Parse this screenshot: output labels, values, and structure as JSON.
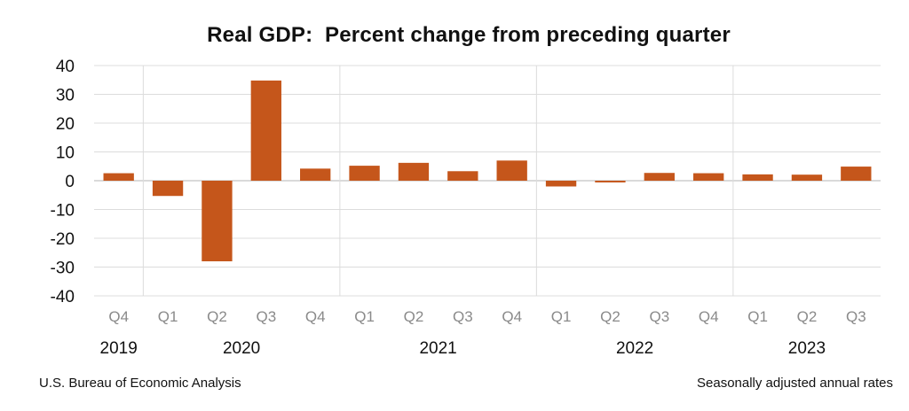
{
  "chart_data": {
    "type": "bar",
    "title": "Real GDP:  Percent change from preceding quarter",
    "xlabel": "",
    "ylabel": "",
    "ylim": [
      -40,
      40
    ],
    "yticks": [
      40,
      30,
      20,
      10,
      0,
      -10,
      -20,
      -30,
      -40
    ],
    "yticks_labels": [
      "40",
      "30",
      "20",
      "10",
      "0",
      "-10",
      "-20",
      "-30",
      "-40"
    ],
    "categories": [
      "Q4",
      "Q1",
      "Q2",
      "Q3",
      "Q4",
      "Q1",
      "Q2",
      "Q3",
      "Q4",
      "Q1",
      "Q2",
      "Q3",
      "Q4",
      "Q1",
      "Q2",
      "Q3"
    ],
    "values": [
      2.6,
      -5.3,
      -28.0,
      34.8,
      4.2,
      5.2,
      6.2,
      3.3,
      7.0,
      -2.0,
      -0.6,
      2.7,
      2.6,
      2.2,
      2.1,
      4.9
    ],
    "years": [
      {
        "label": "2019",
        "start": 0,
        "end": 0
      },
      {
        "label": "2020",
        "start": 1,
        "end": 4
      },
      {
        "label": "2021",
        "start": 5,
        "end": 8
      },
      {
        "label": "2022",
        "start": 9,
        "end": 12
      },
      {
        "label": "2023",
        "start": 13,
        "end": 15
      }
    ],
    "bar_color": "#c5561b",
    "grid": true
  },
  "footer": {
    "source": "U.S. Bureau of Economic Analysis",
    "note": "Seasonally adjusted annual rates"
  }
}
